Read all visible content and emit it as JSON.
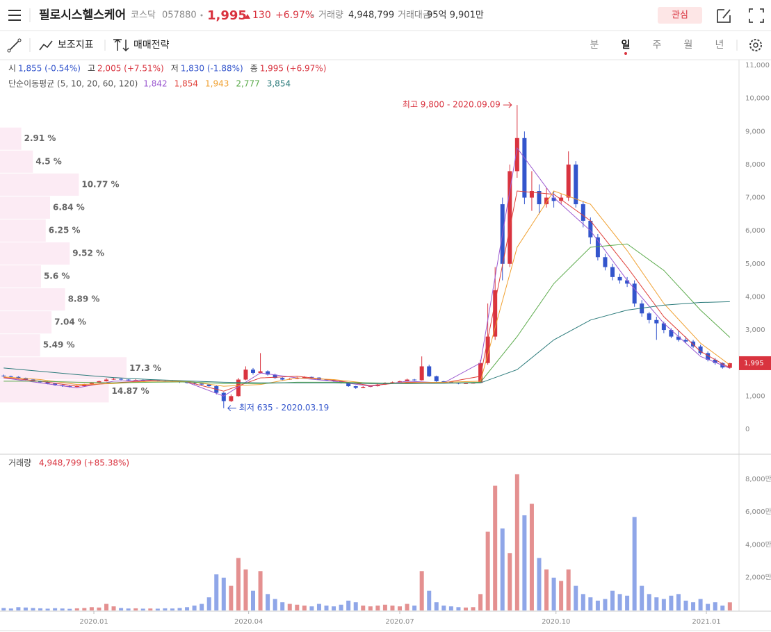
{
  "header": {
    "title": "필로시스헬스케어",
    "market": "코스닥",
    "code": "057880",
    "price": "1,995",
    "change": "130",
    "change_pct": "+6.97%",
    "volume_label": "거래량",
    "volume": "4,948,799",
    "amount_label": "거래대금",
    "amount": "95억 9,901만",
    "watch": "관심"
  },
  "toolbar": {
    "indicators": "보조지표",
    "strategy": "매매전략",
    "periods": [
      "분",
      "일",
      "주",
      "월",
      "년"
    ],
    "selected": 1
  },
  "chart_data": [
    {
      "type": "candlestick",
      "ohlc_info": [
        {
          "label": "시",
          "text": "1,855 (-0.54%)",
          "color": "#3355cc"
        },
        {
          "label": "고",
          "text": "2,005 (+7.51%)",
          "color": "#d9333f"
        },
        {
          "label": "저",
          "text": "1,830 (-1.88%)",
          "color": "#3355cc"
        },
        {
          "label": "종",
          "text": "1,995 (+6.97%)",
          "color": "#d9333f"
        }
      ],
      "ma_label": "단순이동평균 (5, 10, 20, 60, 120)",
      "up_color": "#d9333f",
      "down_color": "#3355cc",
      "xlim": [
        -0.5,
        100.25
      ],
      "ylim": [
        -756,
        11168
      ],
      "yticks": [
        0,
        {
          "value": 1000,
          "label": "1,000"
        },
        {
          "value": 2000,
          "label": "2,000"
        },
        {
          "value": 3000,
          "label": "3,000"
        },
        {
          "value": 4000,
          "label": "4,000"
        },
        {
          "value": 5000,
          "label": "5,000"
        },
        {
          "value": 6000,
          "label": "6,000"
        },
        {
          "value": 7000,
          "label": "7,000"
        },
        {
          "value": 8000,
          "label": "8,000"
        },
        {
          "value": 9000,
          "label": "9,000"
        },
        {
          "value": 10000,
          "label": "10,000"
        },
        {
          "value": 11000,
          "label": "11,000"
        }
      ],
      "candles": [
        [
          1620,
          1650,
          1580,
          1600
        ],
        [
          1600,
          1620,
          1560,
          1580
        ],
        [
          1580,
          1600,
          1530,
          1550
        ],
        [
          1550,
          1560,
          1480,
          1500
        ],
        [
          1500,
          1520,
          1430,
          1450
        ],
        [
          1450,
          1470,
          1400,
          1420
        ],
        [
          1420,
          1440,
          1360,
          1380
        ],
        [
          1380,
          1400,
          1310,
          1330
        ],
        [
          1330,
          1350,
          1280,
          1300
        ],
        [
          1300,
          1320,
          1260,
          1280
        ],
        [
          1280,
          1330,
          1270,
          1300
        ],
        [
          1300,
          1370,
          1290,
          1350
        ],
        [
          1350,
          1420,
          1340,
          1400
        ],
        [
          1400,
          1470,
          1390,
          1450
        ],
        [
          1450,
          1540,
          1440,
          1500
        ],
        [
          1500,
          1560,
          1490,
          1520
        ],
        [
          1520,
          1540,
          1480,
          1500
        ],
        [
          1500,
          1510,
          1460,
          1480
        ],
        [
          1480,
          1520,
          1470,
          1490
        ],
        [
          1490,
          1500,
          1450,
          1470
        ],
        [
          1470,
          1500,
          1460,
          1480
        ],
        [
          1480,
          1490,
          1440,
          1460
        ],
        [
          1460,
          1480,
          1430,
          1450
        ],
        [
          1450,
          1470,
          1420,
          1440
        ],
        [
          1440,
          1450,
          1400,
          1420
        ],
        [
          1420,
          1440,
          1380,
          1400
        ],
        [
          1400,
          1420,
          1350,
          1380
        ],
        [
          1380,
          1400,
          1320,
          1350
        ],
        [
          1350,
          1360,
          1280,
          1300
        ],
        [
          1300,
          1320,
          1050,
          1100
        ],
        [
          1100,
          1120,
          635,
          850
        ],
        [
          850,
          1050,
          820,
          1000
        ],
        [
          1000,
          1550,
          980,
          1500
        ],
        [
          1500,
          1900,
          1480,
          1800
        ],
        [
          1800,
          1850,
          1650,
          1700
        ],
        [
          1700,
          2300,
          1680,
          1750
        ],
        [
          1750,
          1780,
          1620,
          1650
        ],
        [
          1650,
          1680,
          1520,
          1550
        ],
        [
          1550,
          1570,
          1480,
          1500
        ],
        [
          1500,
          1550,
          1490,
          1520
        ],
        [
          1520,
          1580,
          1510,
          1550
        ],
        [
          1550,
          1600,
          1540,
          1580
        ],
        [
          1580,
          1590,
          1540,
          1560
        ],
        [
          1560,
          1570,
          1490,
          1500
        ],
        [
          1500,
          1520,
          1460,
          1480
        ],
        [
          1480,
          1500,
          1430,
          1450
        ],
        [
          1450,
          1460,
          1380,
          1400
        ],
        [
          1400,
          1410,
          1280,
          1300
        ],
        [
          1300,
          1310,
          1220,
          1250
        ],
        [
          1250,
          1300,
          1240,
          1280
        ],
        [
          1280,
          1320,
          1270,
          1300
        ],
        [
          1300,
          1370,
          1290,
          1350
        ],
        [
          1350,
          1420,
          1340,
          1400
        ],
        [
          1400,
          1440,
          1390,
          1420
        ],
        [
          1420,
          1470,
          1410,
          1450
        ],
        [
          1450,
          1530,
          1440,
          1500
        ],
        [
          1500,
          1520,
          1460,
          1480
        ],
        [
          1480,
          2200,
          1470,
          1900
        ],
        [
          1900,
          1950,
          1580,
          1600
        ],
        [
          1600,
          1620,
          1430,
          1450
        ],
        [
          1450,
          1460,
          1400,
          1420
        ],
        [
          1420,
          1440,
          1390,
          1400
        ],
        [
          1400,
          1410,
          1360,
          1380
        ],
        [
          1380,
          1410,
          1370,
          1390
        ],
        [
          1390,
          1420,
          1380,
          1400
        ],
        [
          1400,
          2100,
          1400,
          2000
        ],
        [
          2000,
          3800,
          1950,
          2800
        ],
        [
          2800,
          4900,
          2700,
          4200
        ],
        [
          6800,
          7000,
          4500,
          5000
        ],
        [
          5000,
          8000,
          4900,
          7800
        ],
        [
          7800,
          9800,
          7600,
          8800
        ],
        [
          8800,
          9000,
          6800,
          7000
        ],
        [
          7000,
          7800,
          6600,
          7200
        ],
        [
          7200,
          7400,
          6500,
          6800
        ],
        [
          6800,
          7300,
          6700,
          7000
        ],
        [
          7000,
          7200,
          6700,
          6900
        ],
        [
          6900,
          7100,
          6800,
          7000
        ],
        [
          7000,
          8400,
          6900,
          8000
        ],
        [
          8000,
          8100,
          6700,
          6800
        ],
        [
          6800,
          6900,
          6100,
          6300
        ],
        [
          6300,
          6400,
          5600,
          5800
        ],
        [
          5800,
          5900,
          5100,
          5200
        ],
        [
          5200,
          5300,
          4800,
          4900
        ],
        [
          4900,
          5000,
          4500,
          4600
        ],
        [
          4600,
          4700,
          4400,
          4500
        ],
        [
          4500,
          4600,
          4300,
          4400
        ],
        [
          4400,
          4500,
          3700,
          3800
        ],
        [
          3800,
          3900,
          3400,
          3500
        ],
        [
          3500,
          3550,
          3200,
          3300
        ],
        [
          3300,
          3400,
          2700,
          3200
        ],
        [
          3200,
          3250,
          2900,
          3000
        ],
        [
          3000,
          3050,
          2750,
          2800
        ],
        [
          2800,
          3000,
          2650,
          2700
        ],
        [
          2700,
          2800,
          2600,
          2650
        ],
        [
          2650,
          2700,
          2450,
          2500
        ],
        [
          2500,
          2550,
          2250,
          2300
        ],
        [
          2300,
          2350,
          2050,
          2100
        ],
        [
          2100,
          2150,
          1950,
          2000
        ],
        [
          2000,
          2020,
          1830,
          1865
        ],
        [
          1855,
          2005,
          1830,
          1995
        ]
      ],
      "ma_x": [
        0,
        5,
        10,
        15,
        20,
        25,
        30,
        35,
        40,
        45,
        50,
        55,
        60,
        65,
        70,
        75,
        80,
        85,
        90,
        95,
        99
      ],
      "series": [
        {
          "label": "1,842",
          "color": "#9b59d0",
          "values": [
            1550,
            1400,
            1250,
            1450,
            1480,
            1420,
            1000,
            1700,
            1550,
            1450,
            1300,
            1450,
            1400,
            2000,
            8500,
            7000,
            6000,
            4500,
            3200,
            2200,
            1842
          ]
        },
        {
          "label": "1,854",
          "color": "#e0413a",
          "values": [
            1560,
            1450,
            1300,
            1400,
            1470,
            1430,
            1150,
            1550,
            1600,
            1480,
            1320,
            1420,
            1400,
            1600,
            7200,
            7100,
            6300,
            4900,
            3400,
            2350,
            1854
          ]
        },
        {
          "label": "1,943",
          "color": "#f0a030",
          "values": [
            1580,
            1500,
            1350,
            1380,
            1450,
            1450,
            1300,
            1350,
            1550,
            1500,
            1380,
            1400,
            1420,
            1450,
            5500,
            7200,
            6800,
            5400,
            3800,
            2600,
            1943
          ]
        },
        {
          "label": "2,777",
          "color": "#5aaa4a",
          "values": [
            1450,
            1450,
            1420,
            1400,
            1420,
            1430,
            1380,
            1380,
            1420,
            1420,
            1400,
            1380,
            1390,
            1420,
            2800,
            4400,
            5500,
            5600,
            4800,
            3600,
            2777
          ]
        },
        {
          "label": "3,854",
          "color": "#2a7a7a",
          "values": [
            1850,
            1750,
            1650,
            1560,
            1500,
            1460,
            1420,
            1400,
            1400,
            1400,
            1380,
            1380,
            1390,
            1400,
            1800,
            2700,
            3300,
            3600,
            3750,
            3830,
            3854
          ]
        }
      ],
      "profile": {
        "color": "#fcebf4",
        "xlim": [
          0,
          101
        ],
        "bins": [
          800,
          1494,
          2188,
          2882,
          3576,
          4270,
          4964,
          5658,
          6352,
          7046,
          7740,
          8434,
          9128
        ],
        "values": [
          14.87,
          17.3,
          5.49,
          7.04,
          8.89,
          5.6,
          9.52,
          6.25,
          6.84,
          10.77,
          4.5,
          2.91
        ],
        "value_labels": [
          "14.87 %",
          "17.3 %",
          "5.49 %",
          "7.04 %",
          "8.89 %",
          "5.6 %",
          "9.52 %",
          "6.25 %",
          "6.84 %",
          "10.77 %",
          "4.5 %",
          "2.91 %"
        ]
      },
      "high_note": {
        "text": "최고 9,800 - 2020.09.09",
        "index": 70
      },
      "low_note": {
        "text": "최저 635 - 2020.03.19",
        "index": 30
      }
    },
    {
      "type": "bar",
      "label": "거래량",
      "info": "4,948,799 (+85.38%)",
      "up_color": "#e49090",
      "down_color": "#8fa6e8",
      "xlim": [
        -0.5,
        100.25
      ],
      "ylim": [
        0,
        9481
      ],
      "yticks": [
        {
          "value": 2000,
          "label": "2,000만"
        },
        {
          "value": 4000,
          "label": "4,000만"
        },
        {
          "value": 6000,
          "label": "6,000만"
        },
        {
          "value": 8000,
          "label": "8,000만"
        }
      ],
      "xticks": [
        {
          "value": 12.3,
          "label": "2020.01"
        },
        {
          "value": 33.4,
          "label": "2020.04"
        },
        {
          "value": 54,
          "label": "2020.07"
        },
        {
          "value": 75.3,
          "label": "2020.10"
        },
        {
          "value": 95.8,
          "label": "2021.01"
        }
      ],
      "values": [
        150,
        120,
        200,
        180,
        150,
        130,
        110,
        140,
        120,
        100,
        130,
        150,
        200,
        180,
        400,
        250,
        150,
        120,
        130,
        110,
        120,
        110,
        130,
        120,
        150,
        200,
        300,
        400,
        800,
        2200,
        2000,
        1500,
        3200,
        2500,
        1200,
        2400,
        1000,
        700,
        500,
        400,
        350,
        300,
        250,
        400,
        300,
        250,
        350,
        600,
        500,
        300,
        250,
        300,
        350,
        300,
        250,
        400,
        300,
        2400,
        1200,
        500,
        300,
        250,
        200,
        180,
        200,
        1000,
        4800,
        7600,
        5000,
        3500,
        8300,
        5800,
        6500,
        3200,
        2500,
        2000,
        1800,
        2500,
        1500,
        1000,
        800,
        600,
        700,
        1200,
        1000,
        900,
        5700,
        1500,
        1000,
        800,
        700,
        900,
        1000,
        600,
        500,
        700,
        400,
        500,
        300,
        495
      ]
    }
  ]
}
